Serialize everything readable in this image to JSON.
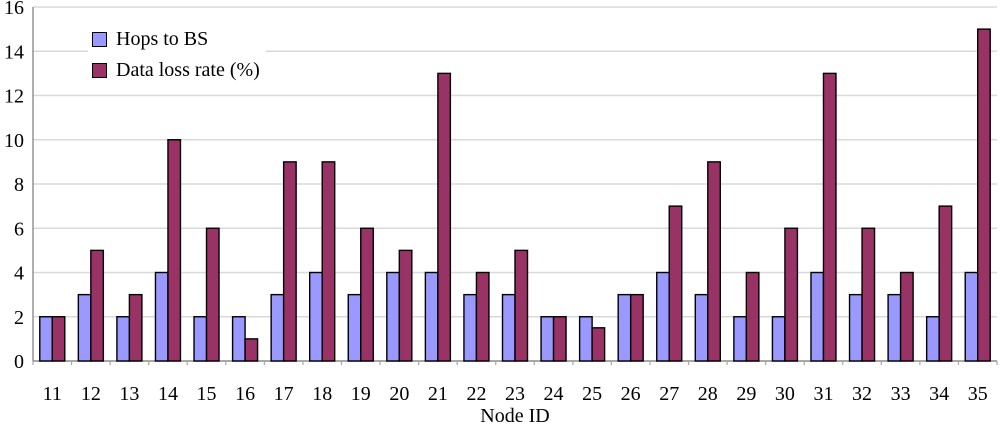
{
  "chart_data": {
    "type": "bar",
    "title": "",
    "xlabel": "Node ID",
    "ylabel": "",
    "categories": [
      "11",
      "12",
      "13",
      "14",
      "15",
      "16",
      "17",
      "18",
      "19",
      "20",
      "21",
      "22",
      "23",
      "24",
      "25",
      "26",
      "27",
      "28",
      "29",
      "30",
      "31",
      "32",
      "33",
      "34",
      "35"
    ],
    "series": [
      {
        "name": "Hops to BS",
        "color": "#9999ff",
        "values": [
          2,
          3,
          2,
          4,
          2,
          2,
          3,
          4,
          3,
          4,
          4,
          3,
          3,
          2,
          2,
          3,
          4,
          3,
          2,
          2,
          4,
          3,
          3,
          2,
          4
        ]
      },
      {
        "name": "Data loss rate (%)",
        "color": "#993366",
        "values": [
          2,
          5,
          3,
          10,
          6,
          1,
          9,
          9,
          6,
          5,
          13,
          4,
          5,
          2,
          1.5,
          3,
          7,
          9,
          4,
          6,
          13,
          6,
          4,
          7,
          15
        ]
      }
    ],
    "ylim": [
      0,
      16
    ],
    "ytick_step": 2,
    "yticks": [
      "0",
      "2",
      "4",
      "6",
      "8",
      "10",
      "12",
      "14",
      "16"
    ],
    "grid": "horizontal",
    "legend_position": "top-left-inside",
    "bar_outline_color": "#000000",
    "gridline_color": "#d9d9d9",
    "axis_color": "#8c8c8c",
    "tick_color": "#a6a6a6",
    "text_color": "#000000",
    "background_color": "#ffffff"
  }
}
